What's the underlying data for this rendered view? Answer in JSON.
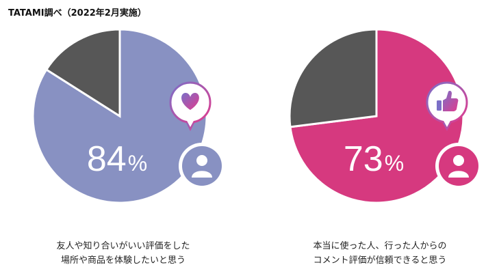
{
  "source_label": "TATAMI調べ（2022年2月実施）",
  "chart_data": [
    {
      "type": "pie",
      "value": 84,
      "value_label": "84",
      "unit": "%",
      "caption_lines": [
        "友人や知り合いがいい評価をした",
        "場所や商品を体験したいと思う"
      ],
      "colors": {
        "primary": "#8891c2",
        "rest": "#575757",
        "bubble_from": "#7b6fc7",
        "bubble_to": "#e03c8f"
      },
      "icon": "heart-icon"
    },
    {
      "type": "pie",
      "value": 73,
      "value_label": "73",
      "unit": "%",
      "caption_lines": [
        "本当に使った人、行った人からの",
        "コメント評価が信頼できると思う"
      ],
      "colors": {
        "primary": "#d6397f",
        "rest": "#575757",
        "bubble_from": "#7b6fc7",
        "bubble_to": "#e03c8f"
      },
      "icon": "thumbs-up-icon"
    }
  ]
}
